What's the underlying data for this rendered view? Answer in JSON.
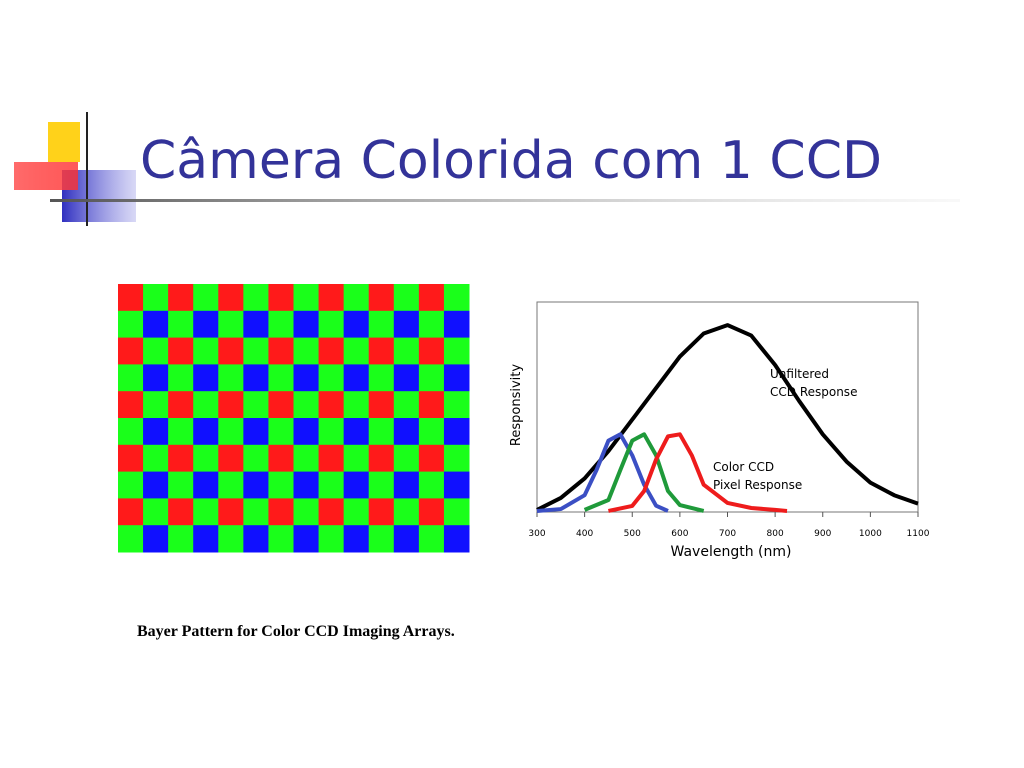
{
  "title": "Câmera Colorida com 1 CCD",
  "caption": "Bayer Pattern for Color CCD Imaging Arrays.",
  "chart_data": {
    "type": "line",
    "xlabel": "Wavelength (nm)",
    "ylabel": "Responsivity",
    "xlim": [
      300,
      1100
    ],
    "xticks": [
      300,
      400,
      500,
      600,
      700,
      800,
      900,
      1000,
      1100
    ],
    "ylim": [
      0,
      1
    ],
    "annotations": [
      [
        "Unfiltered",
        "CCD Response"
      ],
      [
        "Color CCD",
        "Pixel Response"
      ]
    ],
    "series": [
      {
        "color": "#000000",
        "x": [
          300,
          350,
          400,
          450,
          500,
          550,
          600,
          650,
          700,
          750,
          800,
          850,
          900,
          950,
          1000,
          1050,
          1100
        ],
        "values": [
          0.01,
          0.067,
          0.16,
          0.29,
          0.44,
          0.59,
          0.74,
          0.85,
          0.89,
          0.84,
          0.7,
          0.53,
          0.37,
          0.24,
          0.14,
          0.08,
          0.04
        ]
      },
      {
        "color": "#3b4fc4",
        "x": [
          300,
          350,
          400,
          425,
          450,
          475,
          500,
          525,
          550,
          575
        ],
        "values": [
          0.005,
          0.014,
          0.08,
          0.2,
          0.34,
          0.37,
          0.27,
          0.13,
          0.03,
          0.005
        ]
      },
      {
        "color": "#1f9a3a",
        "x": [
          400,
          450,
          475,
          500,
          525,
          550,
          575,
          600,
          650
        ],
        "values": [
          0.01,
          0.057,
          0.2,
          0.34,
          0.37,
          0.27,
          0.1,
          0.033,
          0.005
        ]
      },
      {
        "color": "#ee1c1c",
        "x": [
          450,
          500,
          525,
          550,
          575,
          600,
          625,
          650,
          700,
          750,
          800,
          825
        ],
        "values": [
          0.005,
          0.029,
          0.1,
          0.25,
          0.36,
          0.37,
          0.27,
          0.13,
          0.043,
          0.019,
          0.01,
          0.005
        ]
      }
    ]
  }
}
